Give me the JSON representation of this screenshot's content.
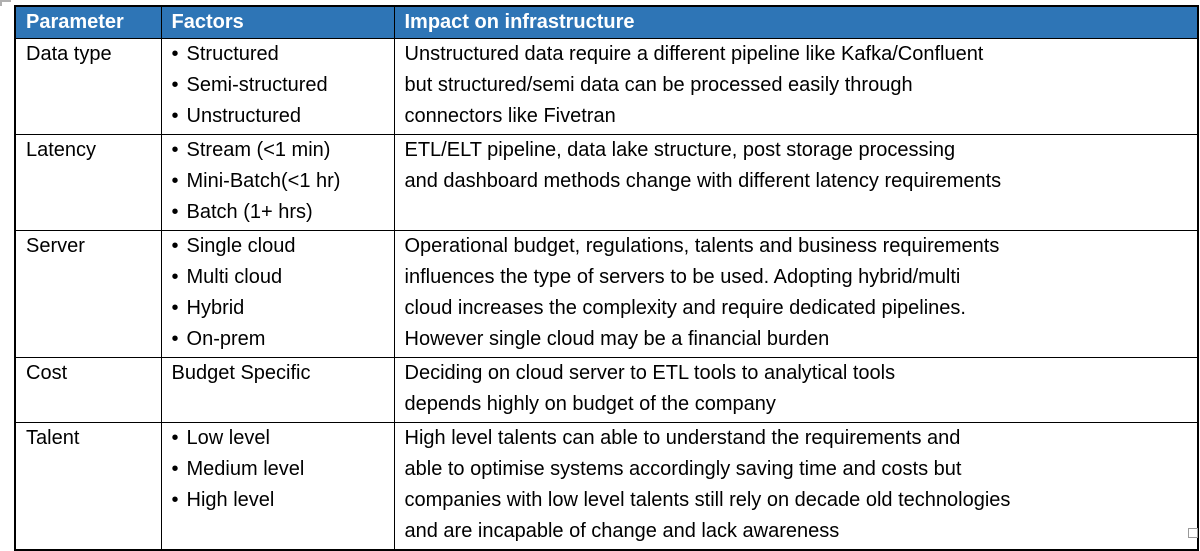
{
  "colors": {
    "header_bg": "#2E75B6",
    "header_text": "#FFFFFF",
    "border": "#000000",
    "body_text": "#000000",
    "page_bg": "#FFFFFF"
  },
  "table": {
    "columns": [
      "Parameter",
      "Factors",
      "Impact on infrastructure"
    ],
    "rows": [
      {
        "parameter": "Data type",
        "factors_bulleted": true,
        "factors": [
          "Structured",
          "Semi-structured",
          "Unstructured"
        ],
        "impact": "Unstructured data require a different pipeline like Kafka/Confluent\nbut structured/semi data can be processed easily through\nconnectors like Fivetran"
      },
      {
        "parameter": "Latency",
        "factors_bulleted": true,
        "factors": [
          "Stream (<1 min)",
          "Mini-Batch(<1 hr)",
          "Batch (1+ hrs)"
        ],
        "impact": "ETL/ELT pipeline, data lake structure, post storage processing\nand dashboard methods change with different latency requirements"
      },
      {
        "parameter": "Server",
        "factors_bulleted": true,
        "factors": [
          "Single cloud",
          "Multi cloud",
          "Hybrid",
          "On-prem"
        ],
        "impact": "Operational budget, regulations, talents and business requirements\ninfluences the type of servers to be used. Adopting hybrid/multi\ncloud increases the complexity and require dedicated pipelines.\nHowever single cloud may be a financial burden"
      },
      {
        "parameter": "Cost",
        "factors_bulleted": false,
        "factors": [
          "Budget Specific"
        ],
        "impact": "Deciding on cloud server to ETL tools to analytical tools\ndepends highly on budget of the company"
      },
      {
        "parameter": "Talent",
        "factors_bulleted": true,
        "factors": [
          "Low level",
          "Medium level",
          "High level"
        ],
        "impact": "High level talents can able to understand the requirements and\nable to optimise systems accordingly saving time and costs but\ncompanies with low level talents still rely on decade old technologies\nand are incapable of change and lack awareness"
      }
    ]
  }
}
